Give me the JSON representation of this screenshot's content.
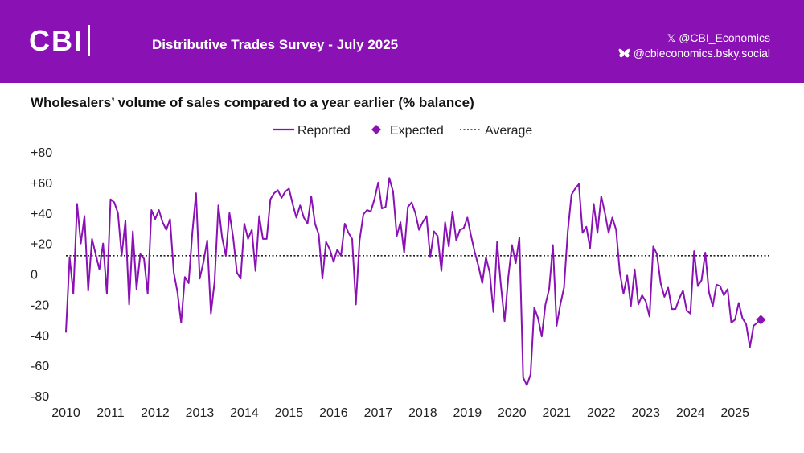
{
  "header": {
    "logo_text": "CBI",
    "survey_title": "Distributive Trades Survey - July 2025",
    "x_handle": "@CBI_Economics",
    "bluesky_handle": "@cbieconomics.bsky.social",
    "x_icon": "x-icon",
    "bluesky_icon": "butterfly-icon",
    "brand_color": "#8a12b4"
  },
  "chart_data": {
    "type": "line",
    "title": "Wholesalers’ volume of sales compared to a year earlier (% balance)",
    "xlabel": "",
    "ylabel": "",
    "ylim": [
      -80,
      80
    ],
    "xlim": [
      2010,
      2025.75
    ],
    "y_ticks": [
      80,
      60,
      40,
      20,
      0,
      -20,
      -40,
      -60,
      -80
    ],
    "y_tick_labels": [
      "+80",
      "+60",
      "+40",
      "+20",
      "0",
      "-20",
      "-40",
      "-60",
      "-80"
    ],
    "x_tick_labels": [
      "2010",
      "2011",
      "2012",
      "2013",
      "2014",
      "2015",
      "2016",
      "2017",
      "2018",
      "2019",
      "2020",
      "2021",
      "2022",
      "2023",
      "2024",
      "2025"
    ],
    "legend": {
      "position": "top-center",
      "reported_label": "Reported",
      "expected_label": "Expected",
      "average_label": "Average"
    },
    "average": 12,
    "color": "#8a12b4",
    "series": [
      {
        "name": "Reported",
        "start": 2010,
        "step_months": 1,
        "values": [
          -38,
          11,
          -13,
          46,
          20,
          38,
          -11,
          23,
          13,
          3,
          20,
          -13,
          49,
          47,
          40,
          12,
          35,
          -20,
          28,
          -10,
          13,
          10,
          -13,
          42,
          36,
          42,
          34,
          29,
          36,
          1,
          -12,
          -32,
          -2,
          -6,
          27,
          53,
          -3,
          8,
          22,
          -26,
          -5,
          45,
          24,
          12,
          40,
          24,
          1,
          -3,
          33,
          23,
          29,
          2,
          38,
          23,
          23,
          49,
          53,
          55,
          50,
          54,
          56,
          46,
          37,
          45,
          37,
          33,
          51,
          33,
          26,
          -3,
          21,
          16,
          8,
          16,
          12,
          33,
          27,
          23,
          -20,
          22,
          39,
          42,
          41,
          49,
          60,
          43,
          44,
          63,
          54,
          25,
          34,
          14,
          44,
          47,
          40,
          29,
          34,
          38,
          11,
          28,
          25,
          2,
          34,
          18,
          41,
          22,
          29,
          30,
          37,
          25,
          14,
          5,
          -6,
          11,
          1,
          -25,
          21,
          -7,
          -31,
          -2,
          19,
          7,
          24,
          -68,
          -73,
          -66,
          -22,
          -29,
          -41,
          -20,
          -10,
          19,
          -34,
          -20,
          -9,
          28,
          52,
          56,
          59,
          27,
          31,
          17,
          46,
          27,
          51,
          40,
          27,
          37,
          29,
          1,
          -13,
          -1,
          -21,
          3,
          -20,
          -14,
          -18,
          -28,
          18,
          13,
          -6,
          -15,
          -9,
          -23,
          -23,
          -16,
          -11,
          -24,
          -26,
          15,
          -8,
          -4,
          14,
          -12,
          -21,
          -7,
          -8,
          -14,
          -10,
          -32,
          -30,
          -19,
          -29,
          -33,
          -48,
          -34,
          -32
        ]
      },
      {
        "name": "Expected",
        "x": 2025.58,
        "value": -30
      }
    ]
  }
}
